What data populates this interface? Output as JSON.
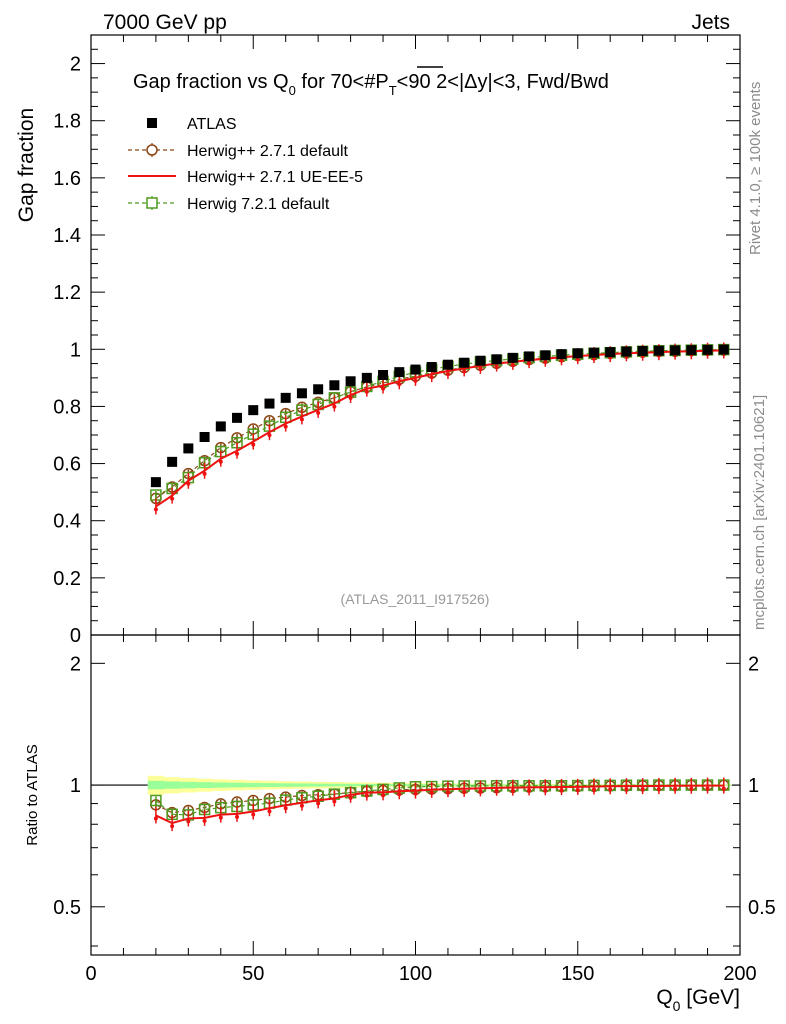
{
  "header": {
    "left": "7000 GeV pp",
    "right": "Jets"
  },
  "side_text": {
    "top": "Rivet 4.1.0, ≥ 100k events",
    "bottom": "mcplots.cern.ch [arXiv:2401.10621]"
  },
  "chart_data": {
    "type": "scatter",
    "title": "Gap fraction vs Q0 for 70<#PT<90  2<|Δy|<3, Fwd/Bwd",
    "title_parts": {
      "a": "Gap fraction vs Q",
      "a_sub": "0",
      "b": " for 70<#",
      "b_over": "P",
      "b_over_sub": "T",
      "c": "<90  2<|Δy|<3, Fwd/Bwd"
    },
    "watermark": "(ATLAS_2011_I917526)",
    "ylabel": "Gap fraction",
    "ratio_ylabel": "Ratio to ATLAS",
    "xlabel": "Q0 [GeV]",
    "xlabel_main": "Q",
    "xlabel_sub": "0",
    "xlabel_unit": " [GeV]",
    "xlim": [
      0,
      200
    ],
    "ylim": [
      0,
      2.1
    ],
    "ratio_ylim": [
      0.38,
      2.35
    ],
    "x_ticks": [
      "0",
      "50",
      "100",
      "150",
      "200"
    ],
    "y_ticks": [
      "0",
      "0.2",
      "0.4",
      "0.6",
      "0.8",
      "1",
      "1.2",
      "1.4",
      "1.6",
      "1.8",
      "2"
    ],
    "ratio_ticks": [
      "0.5",
      "1",
      "2"
    ],
    "x": [
      20,
      25,
      30,
      35,
      40,
      45,
      50,
      55,
      60,
      65,
      70,
      75,
      80,
      85,
      90,
      95,
      100,
      105,
      110,
      115,
      120,
      125,
      130,
      135,
      140,
      145,
      150,
      155,
      160,
      165,
      170,
      175,
      180,
      185,
      190,
      195
    ],
    "series": [
      {
        "name": "ATLAS",
        "style": "data",
        "color": "#000000",
        "values": [
          0.535,
          0.606,
          0.653,
          0.693,
          0.73,
          0.76,
          0.787,
          0.81,
          0.83,
          0.846,
          0.86,
          0.874,
          0.888,
          0.9,
          0.91,
          0.92,
          0.929,
          0.938,
          0.946,
          0.953,
          0.96,
          0.965,
          0.97,
          0.975,
          0.979,
          0.983,
          0.986,
          0.988,
          0.99,
          0.992,
          0.994,
          0.995,
          0.996,
          0.997,
          0.998,
          0.999
        ]
      },
      {
        "name": "Herwig++ 2.7.1 default",
        "style": "circle-dashed",
        "color": "#8b4513",
        "values": [
          0.478,
          0.518,
          0.565,
          0.61,
          0.656,
          0.69,
          0.721,
          0.75,
          0.775,
          0.797,
          0.814,
          0.83,
          0.852,
          0.868,
          0.882,
          0.895,
          0.906,
          0.917,
          0.927,
          0.936,
          0.944,
          0.951,
          0.958,
          0.964,
          0.969,
          0.974,
          0.978,
          0.981,
          0.985,
          0.987,
          0.99,
          0.992,
          0.993,
          0.995,
          0.996,
          0.997
        ]
      },
      {
        "name": "Herwig++ 2.7.1 UE-EE-5",
        "style": "line",
        "color": "#ee1111",
        "values": [
          0.45,
          0.488,
          0.54,
          0.575,
          0.617,
          0.645,
          0.677,
          0.71,
          0.74,
          0.765,
          0.788,
          0.81,
          0.84,
          0.862,
          0.873,
          0.888,
          0.9,
          0.913,
          0.924,
          0.933,
          0.942,
          0.95,
          0.956,
          0.962,
          0.967,
          0.972,
          0.976,
          0.98,
          0.983,
          0.986,
          0.988,
          0.99,
          0.992,
          0.993,
          0.995,
          0.996
        ]
      },
      {
        "name": "Herwig 7.2.1 default",
        "style": "square-dashed",
        "color": "#4d9a1f",
        "values": [
          0.49,
          0.513,
          0.551,
          0.603,
          0.642,
          0.673,
          0.703,
          0.731,
          0.762,
          0.787,
          0.807,
          0.83,
          0.85,
          0.87,
          0.888,
          0.905,
          0.92,
          0.93,
          0.94,
          0.948,
          0.955,
          0.961,
          0.966,
          0.971,
          0.975,
          0.979,
          0.983,
          0.986,
          0.988,
          0.991,
          0.993,
          0.995,
          0.996,
          0.997,
          0.998,
          0.999
        ]
      }
    ]
  }
}
